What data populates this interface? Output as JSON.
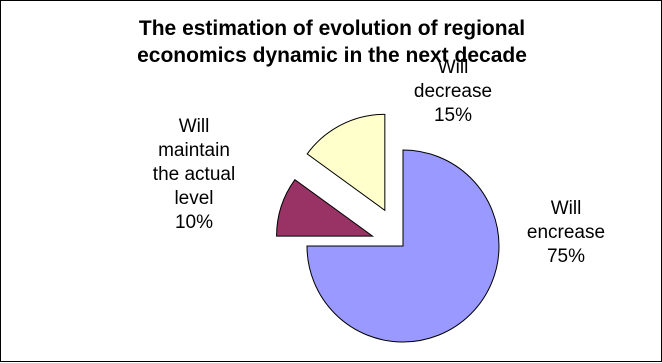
{
  "chart_data": {
    "type": "pie",
    "title_lines": [
      "The estimation of evolution of regional",
      "economics dynamic in the next decade"
    ],
    "slices": [
      {
        "key": "increase",
        "label_lines": [
          "Will",
          "encrease",
          "75%"
        ],
        "value": 75,
        "color": "#9999ff"
      },
      {
        "key": "maintain",
        "label_lines": [
          "Will",
          "maintain",
          "the actual",
          "level",
          "10%"
        ],
        "value": 10,
        "color": "#993366"
      },
      {
        "key": "decrease",
        "label_lines": [
          "Will",
          "decrease",
          "15%"
        ],
        "value": 15,
        "color": "#ffffcc"
      }
    ],
    "legend": "none",
    "grid": false
  }
}
